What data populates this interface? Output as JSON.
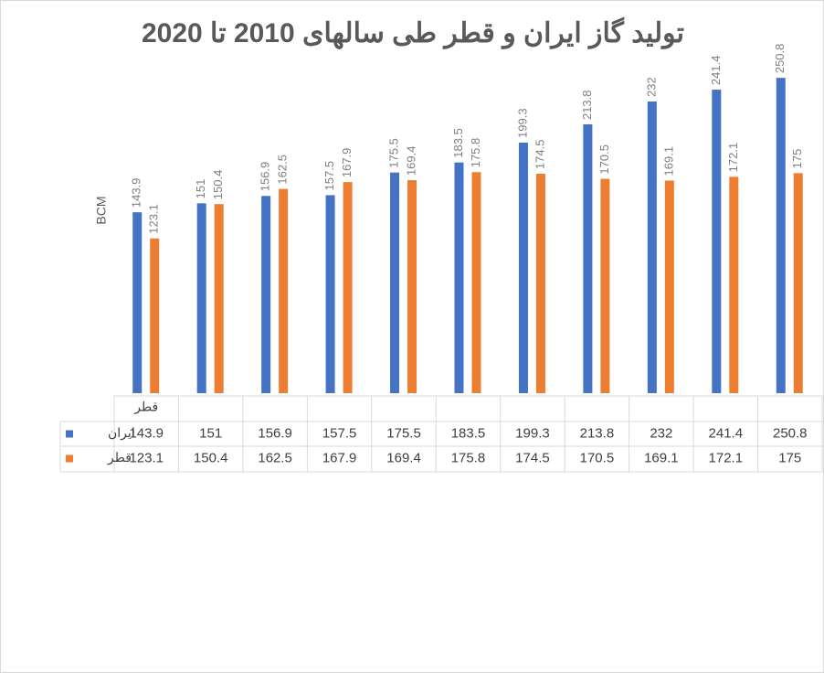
{
  "chart_data": {
    "type": "bar",
    "title": "تولید گاز ایران و قطر طی سالهای 2010 تا 2020",
    "y_label": "BCM",
    "categories": [
      "قطر",
      null,
      null,
      null,
      null,
      null,
      null,
      null,
      null,
      null,
      null
    ],
    "series": [
      {
        "name": "ایران",
        "color": "#4472c4",
        "values": [
          143.9,
          151,
          156.9,
          157.5,
          175.5,
          183.5,
          199.3,
          213.8,
          232,
          241.4,
          250.8
        ]
      },
      {
        "name": "قطر",
        "color": "#ed7d31",
        "values": [
          123.1,
          150.4,
          162.5,
          167.9,
          169.4,
          175.8,
          174.5,
          170.5,
          169.1,
          172.1,
          175
        ]
      }
    ],
    "ylim": [
      0,
      300
    ]
  }
}
